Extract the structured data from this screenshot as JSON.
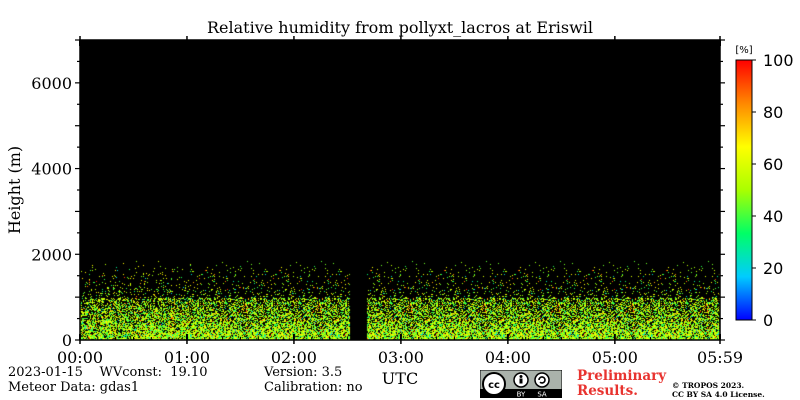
{
  "chart_data": {
    "type": "heatmap",
    "title": "Relative humidity from pollyxt_lacros at Eriswil",
    "xlabel": "UTC",
    "ylabel": "Height (m)",
    "x_ticks": [
      "00:00",
      "01:00",
      "02:00",
      "03:00",
      "04:00",
      "05:00",
      "05:59"
    ],
    "x_range_hours": [
      0,
      5.983
    ],
    "y_ticks": [
      0,
      2000,
      4000,
      6000
    ],
    "ylim": [
      0,
      7000
    ],
    "background": "#000000",
    "colorbar": {
      "unit": "[%]",
      "range": [
        0,
        100
      ],
      "ticks": [
        0,
        20,
        40,
        60,
        80,
        100
      ],
      "colormap": [
        "#0000ff",
        "#00ccff",
        "#00ff66",
        "#aaff00",
        "#ffff00",
        "#ff8800",
        "#ff0000"
      ]
    },
    "data_gap_hours": [
      2.52,
      2.68
    ],
    "signal_layer": {
      "dense_top_m": 1000,
      "sparse_top_m": 1900,
      "dominant_rh_range": [
        35,
        70
      ]
    }
  },
  "footer": {
    "date_line": "2023-01-15    WVconst:  19.10",
    "meteor_line": "Meteor Data: gdas1",
    "version_line": "Version: 3.5",
    "calibration_line": "Calibration: no",
    "preliminary_1": "Preliminary",
    "preliminary_2": "Results.",
    "copyright_1": "© TROPOS 2023.",
    "copyright_2": "CC BY SA 4.0 License.",
    "cc_by": "BY",
    "cc_sa": "SA"
  }
}
